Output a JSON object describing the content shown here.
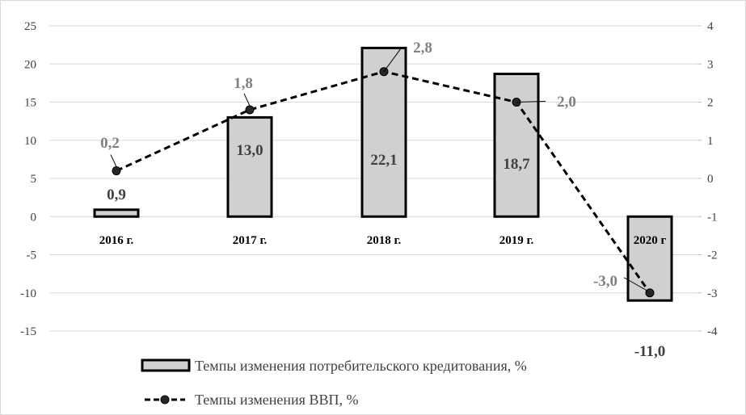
{
  "chart_data": {
    "type": "bar",
    "categories": [
      "2016 г.",
      "2017 г.",
      "2018 г.",
      "2019 г.",
      "2020 г"
    ],
    "series": [
      {
        "name": "Темпы изменения потребительского кредитования, %",
        "type": "bar",
        "axis": "left",
        "values": [
          0.9,
          13.0,
          22.1,
          18.7,
          -11.0
        ],
        "labels": [
          "0,9",
          "13,0",
          "22,1",
          "18,7",
          "-11,0"
        ]
      },
      {
        "name": "Темпы изменения ВВП, %",
        "type": "line",
        "axis": "right",
        "values": [
          0.2,
          1.8,
          2.8,
          2.0,
          -3.0
        ],
        "labels": [
          "0,2",
          "1,8",
          "2,8",
          "2,0",
          "-3,0"
        ]
      }
    ],
    "y_left": {
      "min": -15,
      "max": 25,
      "ticks": [
        "25",
        "20",
        "15",
        "10",
        "5",
        "0",
        "-5",
        "-10",
        "-15"
      ]
    },
    "y_right": {
      "min": -4,
      "max": 4,
      "ticks": [
        "4",
        "3",
        "2",
        "1",
        "0",
        "-1",
        "-2",
        "-3",
        "-4"
      ]
    },
    "grid": true,
    "legend_position": "bottom",
    "colors": {
      "bar_fill": "#d0d0d0",
      "bar_border": "#000000",
      "line": "#000000",
      "marker": "#262626",
      "grid": "#d9d9d9"
    }
  }
}
